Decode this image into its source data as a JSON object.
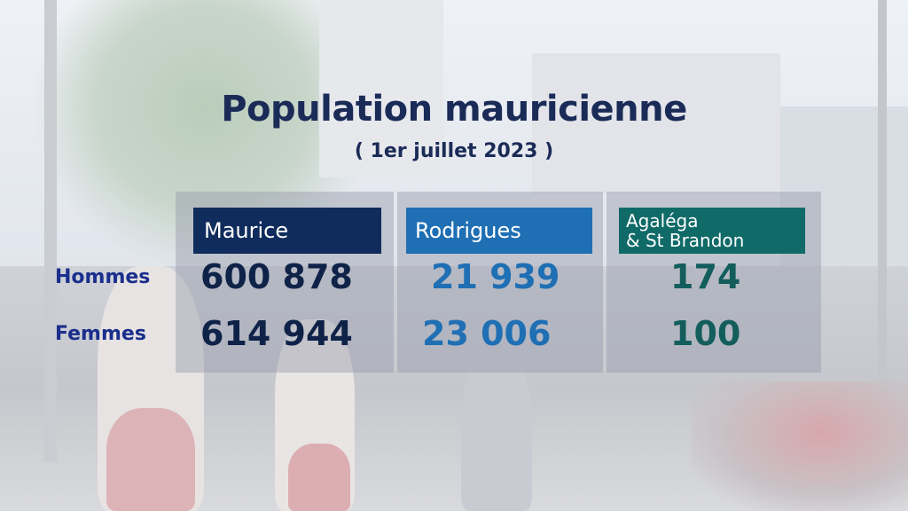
{
  "title": "Population mauricienne",
  "subtitle": "( 1er juillet 2023 )",
  "columns": [
    {
      "name": "Maurice",
      "hommes": "600 878",
      "femmes": "614 944",
      "color": "#0f2c5c"
    },
    {
      "name": "Rodrigues",
      "hommes": "21 939",
      "femmes": "23 006",
      "color": "#1f6fb4"
    },
    {
      "name_line1": "Agaléga",
      "name_line2": "& St Brandon",
      "hommes": "174",
      "femmes": "100",
      "color": "#0f6a68"
    }
  ],
  "rows": {
    "hommes": "Hommes",
    "femmes": "Femmes"
  }
}
